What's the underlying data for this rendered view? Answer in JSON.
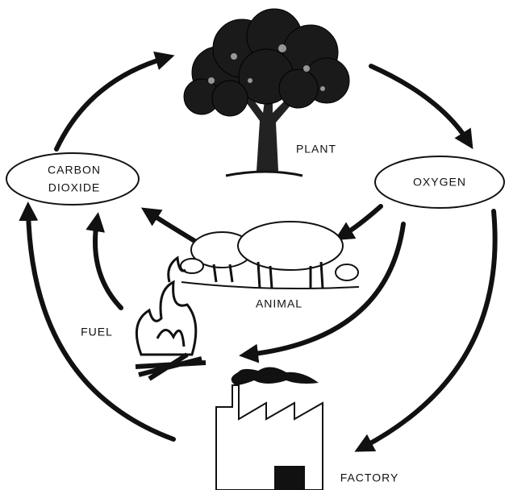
{
  "nodes": [
    {
      "lines": [
        "CARBON",
        "DIOXIDE"
      ]
    },
    {
      "label": "OXYGEN"
    },
    {
      "label": "PLANT"
    },
    {
      "label": "ANIMAL"
    },
    {
      "label": "FUEL"
    },
    {
      "label": "FACTORY"
    }
  ]
}
